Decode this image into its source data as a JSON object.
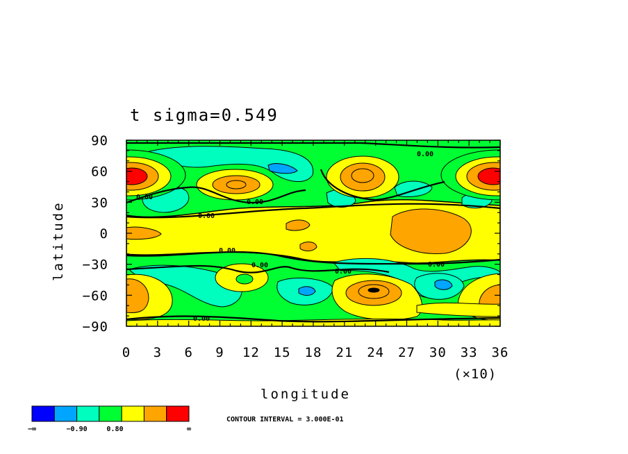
{
  "chart_data": {
    "type": "contour",
    "title": "t  sigma=0.549",
    "xlabel": "longitude",
    "ylabel": "latitude",
    "x_ticks": [
      "0",
      "3",
      "6",
      "9",
      "12",
      "15",
      "18",
      "21",
      "24",
      "27",
      "30",
      "33",
      "36"
    ],
    "x_tick_values": [
      0,
      3,
      6,
      9,
      12,
      15,
      18,
      21,
      24,
      27,
      30,
      33,
      36
    ],
    "x_multiplier": "(×10)",
    "xlim": [
      0,
      36
    ],
    "y_ticks": [
      "90",
      "60",
      "30",
      "0",
      "−30",
      "−60",
      "−90"
    ],
    "y_tick_values": [
      90,
      60,
      30,
      0,
      -30,
      -60,
      -90
    ],
    "ylim": [
      -90,
      90
    ],
    "contour_interval_label": "CONTOUR INTERVAL = 3.000E-01",
    "contour_interval": 0.3,
    "zero_contour_label": "0.00",
    "colorbar": {
      "colors": [
        "#0000ff",
        "#00a5ff",
        "#00ffbe",
        "#00ff32",
        "#ffff00",
        "#ffa500",
        "#ff0000"
      ],
      "labels": [
        "−∞",
        "−0.90",
        "0.80",
        "∞"
      ],
      "label_positions": [
        0,
        2,
        3.7,
        7
      ]
    },
    "features": [
      {
        "lon": 1.5,
        "lat": 56,
        "value": 1.8,
        "sign": "warm"
      },
      {
        "lon": 10.5,
        "lat": 49,
        "value": 1.2,
        "sign": "warm"
      },
      {
        "lon": 23.5,
        "lat": 57,
        "value": 0.9,
        "sign": "warm"
      },
      {
        "lon": 35,
        "lat": 56,
        "value": 1.8,
        "sign": "warm"
      },
      {
        "lon": 29,
        "lat": 2,
        "value": 0.7,
        "sign": "warm"
      },
      {
        "lon": 23.5,
        "lat": -56,
        "value": 1.2,
        "sign": "warm"
      },
      {
        "lon": 1,
        "lat": -58,
        "value": 0.8,
        "sign": "warm"
      },
      {
        "lon": 35,
        "lat": -62,
        "value": 0.7,
        "sign": "warm"
      },
      {
        "lon": 11.5,
        "lat": -44,
        "value": 0.5,
        "sign": "warm"
      },
      {
        "lon": 15.5,
        "lat": 63,
        "value": -1.0,
        "sign": "cold"
      },
      {
        "lon": 17,
        "lat": -54,
        "value": -1.0,
        "sign": "cold"
      },
      {
        "lon": 30.5,
        "lat": -50,
        "value": -1.0,
        "sign": "cold"
      }
    ]
  }
}
